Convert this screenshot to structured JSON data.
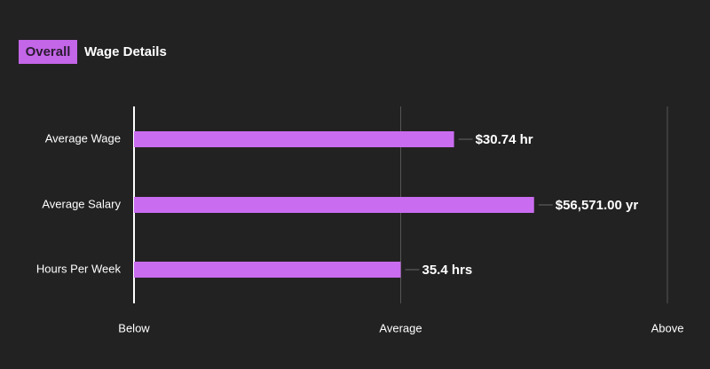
{
  "chart_data": {
    "type": "bar",
    "orientation": "horizontal",
    "tag": "Overall",
    "title": "Wage Details",
    "categories": [
      "Average Wage",
      "Average Salary",
      "Hours Per Week"
    ],
    "values": [
      1.2,
      1.5,
      1.0
    ],
    "annotations": [
      "$30.74 hr",
      "$56,571.00 yr",
      "35.4 hrs"
    ],
    "color": "#c96cf0",
    "xlim": [
      0,
      2
    ],
    "xticks": [
      {
        "value": 0,
        "label": "Below"
      },
      {
        "value": 1,
        "label": "Average"
      },
      {
        "value": 2,
        "label": "Above"
      }
    ],
    "grid": true
  }
}
